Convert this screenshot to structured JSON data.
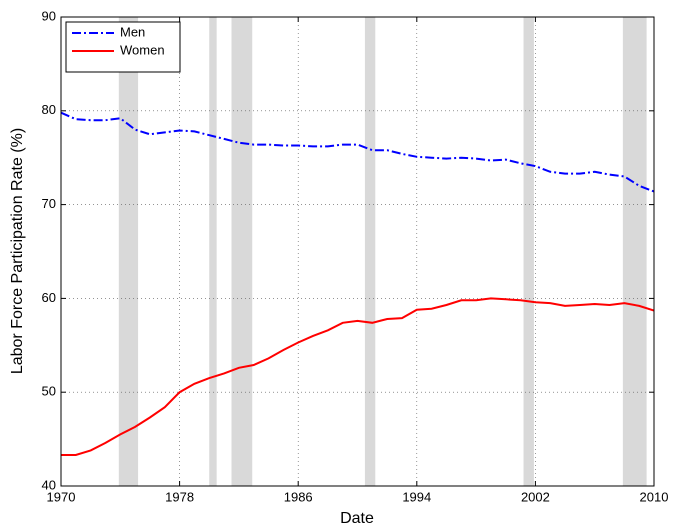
{
  "chart_data": {
    "type": "line",
    "xlabel": "Date",
    "ylabel": "Labor Force Participation Rate (%)",
    "x": [
      1970,
      1971,
      1972,
      1973,
      1974,
      1975,
      1976,
      1977,
      1978,
      1979,
      1980,
      1981,
      1982,
      1983,
      1984,
      1985,
      1986,
      1987,
      1988,
      1989,
      1990,
      1991,
      1992,
      1993,
      1994,
      1995,
      1996,
      1997,
      1998,
      1999,
      2000,
      2001,
      2002,
      2003,
      2004,
      2005,
      2006,
      2007,
      2008,
      2009,
      2010
    ],
    "series": [
      {
        "name": "Men",
        "color": "#0000ff",
        "dash": "dash-dot",
        "values": [
          79.8,
          79.1,
          79.0,
          79.0,
          79.2,
          78.0,
          77.5,
          77.7,
          77.9,
          77.8,
          77.4,
          77.0,
          76.6,
          76.4,
          76.4,
          76.3,
          76.3,
          76.2,
          76.2,
          76.4,
          76.4,
          75.8,
          75.8,
          75.4,
          75.1,
          75.0,
          74.9,
          75.0,
          74.9,
          74.7,
          74.8,
          74.4,
          74.1,
          73.5,
          73.3,
          73.3,
          73.5,
          73.2,
          73.0,
          72.0,
          71.4
        ]
      },
      {
        "name": "Women",
        "color": "#ff0000",
        "dash": "solid",
        "values": [
          43.3,
          43.3,
          43.8,
          44.6,
          45.5,
          46.3,
          47.3,
          48.4,
          50.0,
          50.9,
          51.5,
          52.0,
          52.6,
          52.9,
          53.6,
          54.5,
          55.3,
          56.0,
          56.6,
          57.4,
          57.6,
          57.4,
          57.8,
          57.9,
          58.8,
          58.9,
          59.3,
          59.8,
          59.8,
          60.0,
          59.9,
          59.8,
          59.6,
          59.5,
          59.2,
          59.3,
          59.4,
          59.3,
          59.5,
          59.2,
          58.7
        ]
      }
    ],
    "shaded_regions": [
      [
        1973.9,
        1975.2
      ],
      [
        1980.0,
        1980.5
      ],
      [
        1981.5,
        1982.9
      ],
      [
        1990.5,
        1991.2
      ],
      [
        2001.2,
        2001.9
      ],
      [
        2007.9,
        2009.5
      ]
    ],
    "shaded_color": "#d9d9d9",
    "xlim": [
      1970,
      2010
    ],
    "xticks": [
      1970,
      1978,
      1986,
      1994,
      2002,
      2010
    ],
    "ylim": [
      40,
      90
    ],
    "yticks": [
      40,
      50,
      60,
      70,
      80,
      90
    ],
    "grid": true,
    "legend": "upper left"
  }
}
